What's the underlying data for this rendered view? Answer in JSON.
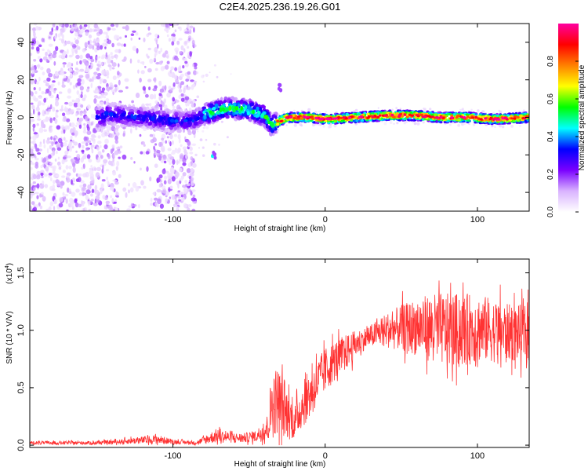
{
  "figure_title": "C2E4.2025.236.19.26.G01",
  "chart_data": [
    {
      "type": "heatmap",
      "title": "C2E4.2025.236.19.26.G01",
      "xlabel": "Height of straight line (km)",
      "ylabel": "Frequency (Hz)",
      "xlim": [
        -194,
        134
      ],
      "ylim": [
        -50,
        50
      ],
      "x_ticks": [
        -100,
        0,
        100
      ],
      "y_ticks": [
        -40,
        -20,
        0,
        20,
        40
      ],
      "colorbar": {
        "label": "Normalized spectral amplitude",
        "range": [
          0,
          1
        ],
        "ticks": [
          0.0,
          0.2,
          0.4,
          0.6,
          0.8
        ],
        "colormap": [
          "#ffffff",
          "#d9b3ff",
          "#7a00ff",
          "#0000ff",
          "#00ffff",
          "#00ff00",
          "#ffff00",
          "#ff8000",
          "#ff0000",
          "#ff00a0"
        ]
      },
      "ridge_points": [
        {
          "x": -145,
          "y": 2
        },
        {
          "x": -120,
          "y": 0
        },
        {
          "x": -100,
          "y": -2
        },
        {
          "x": -88,
          "y": -2
        },
        {
          "x": -78,
          "y": 2
        },
        {
          "x": -65,
          "y": 5
        },
        {
          "x": -50,
          "y": 4
        },
        {
          "x": -40,
          "y": 1
        },
        {
          "x": -35,
          "y": -4
        },
        {
          "x": -25,
          "y": 0
        },
        {
          "x": -10,
          "y": 0
        },
        {
          "x": 0,
          "y": -1
        },
        {
          "x": 20,
          "y": 0
        },
        {
          "x": 40,
          "y": 1
        },
        {
          "x": 60,
          "y": 1
        },
        {
          "x": 75,
          "y": 0
        },
        {
          "x": 95,
          "y": 0
        },
        {
          "x": 110,
          "y": -1
        },
        {
          "x": 134,
          "y": 0
        }
      ],
      "noise_region_x": [
        -194,
        -85
      ],
      "isolated_features": [
        {
          "x": -30,
          "y": 16
        },
        {
          "x": -73,
          "y": -20
        }
      ]
    },
    {
      "type": "line",
      "xlabel": "Height of straight line (km)",
      "ylabel": "SNR (10 * V/V)",
      "y_scale_label": "(x10",
      "y_scale_exponent": "4",
      "xlim": [
        -194,
        134
      ],
      "ylim": [
        -0.02,
        1.62
      ],
      "x_ticks": [
        -100,
        0,
        100
      ],
      "y_ticks": [
        0.0,
        0.5,
        1.0,
        1.5
      ],
      "y_tick_labels": [
        "0.0",
        "0.5",
        "1.0",
        "1.5"
      ],
      "color": "#ff3333",
      "series": [
        {
          "name": "SNR",
          "x": [
            -194,
            -150,
            -135,
            -125,
            -110,
            -100,
            -85,
            -78,
            -72,
            -65,
            -55,
            -45,
            -38,
            -35,
            -31,
            -27,
            -23,
            -20,
            -15,
            -10,
            -5,
            0,
            5,
            10,
            15,
            20,
            25,
            30,
            35,
            40,
            50,
            60,
            70,
            80,
            90,
            100,
            110,
            120,
            134
          ],
          "mean": [
            0.02,
            0.02,
            0.03,
            0.04,
            0.05,
            0.03,
            0.02,
            0.05,
            0.08,
            0.07,
            0.06,
            0.08,
            0.15,
            0.35,
            0.4,
            0.3,
            0.25,
            0.2,
            0.35,
            0.45,
            0.55,
            0.65,
            0.72,
            0.78,
            0.82,
            0.88,
            0.92,
            0.95,
            0.98,
            1.0,
            1.02,
            1.03,
            1.02,
            1.0,
            1.0,
            1.02,
            1.0,
            0.98,
            0.97
          ],
          "spread": [
            0.015,
            0.015,
            0.02,
            0.03,
            0.04,
            0.02,
            0.015,
            0.04,
            0.06,
            0.05,
            0.04,
            0.05,
            0.12,
            0.3,
            0.3,
            0.25,
            0.2,
            0.15,
            0.2,
            0.22,
            0.2,
            0.2,
            0.18,
            0.16,
            0.15,
            0.12,
            0.1,
            0.1,
            0.12,
            0.15,
            0.2,
            0.25,
            0.3,
            0.32,
            0.32,
            0.3,
            0.28,
            0.25,
            0.25
          ]
        }
      ]
    }
  ]
}
